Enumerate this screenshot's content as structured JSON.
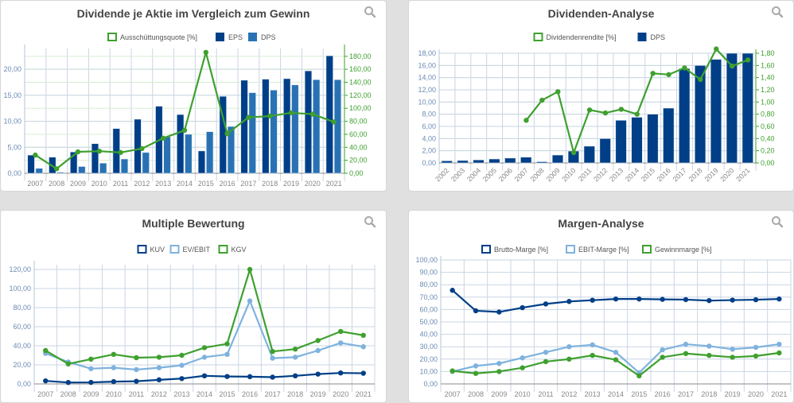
{
  "colors": {
    "dark_blue": "#003f87",
    "mid_blue": "#2872b4",
    "light_blue": "#7fb2de",
    "green": "#3ea02e",
    "grid_blue": "#c9d5e3",
    "grid_green": "#d7ecd2"
  },
  "icons": {
    "zoom": "magnifier-icon"
  },
  "chart_data": [
    {
      "id": "dividende-vs-gewinn",
      "type": "bar",
      "title": "Dividende je Aktie im Vergleich zum Gewinn",
      "categories": [
        "2007",
        "2008",
        "2009",
        "2010",
        "2011",
        "2012",
        "2013",
        "2014",
        "2015",
        "2016",
        "2017",
        "2018",
        "2019",
        "2020",
        "2021"
      ],
      "legend_position": "top-center",
      "grid": true,
      "y_left": {
        "range": [
          0,
          24
        ],
        "ticks": [
          "0,00",
          "5,00",
          "10,00",
          "15,00",
          "20,00"
        ],
        "tick_values": [
          0,
          5,
          10,
          15,
          20
        ]
      },
      "y_right": {
        "range": [
          0,
          192
        ],
        "ticks": [
          "0,00",
          "20,00",
          "40,00",
          "60,00",
          "80,00",
          "100,00",
          "120,00",
          "140,00",
          "160,00",
          "180,00"
        ],
        "tick_values": [
          0,
          20,
          40,
          60,
          80,
          100,
          120,
          140,
          160,
          180
        ]
      },
      "series": [
        {
          "name": "Ausschüttungsquote [%]",
          "kind": "line",
          "axis": "right",
          "color": "#3ea02e",
          "values": [
            28,
            7,
            33,
            34,
            32,
            38,
            54,
            66,
            186,
            61,
            86,
            88,
            93,
            91,
            79
          ]
        },
        {
          "name": "EPS",
          "kind": "bar",
          "axis": "left",
          "color": "#003f87",
          "values": [
            3.5,
            3.1,
            4.1,
            5.7,
            8.6,
            10.4,
            12.9,
            11.3,
            4.3,
            14.8,
            17.9,
            18.1,
            18.2,
            19.7,
            22.6
          ]
        },
        {
          "name": "DPS",
          "kind": "bar",
          "axis": "left",
          "color": "#2872b4",
          "values": [
            0.95,
            0.2,
            1.3,
            1.95,
            2.75,
            4.0,
            7.0,
            7.5,
            8.0,
            9.0,
            15.5,
            16.0,
            17.0,
            18.0,
            18.0
          ]
        }
      ]
    },
    {
      "id": "dividenden-analyse",
      "type": "bar",
      "title": "Dividenden-Analyse",
      "categories": [
        "2002",
        "2003",
        "2004",
        "2005",
        "2006",
        "2007",
        "2008",
        "2009",
        "2010",
        "2011",
        "2012",
        "2013",
        "2014",
        "2015",
        "2016",
        "2017",
        "2018",
        "2019",
        "2020",
        "2021"
      ],
      "legend_position": "top-center",
      "grid": true,
      "y_left": {
        "range": [
          0,
          18
        ],
        "ticks": [
          "0,00",
          "2,00",
          "4,00",
          "6,00",
          "8,00",
          "10,00",
          "12,00",
          "14,00",
          "16,00",
          "18,00"
        ],
        "tick_values": [
          0,
          2,
          4,
          6,
          8,
          10,
          12,
          14,
          16,
          18
        ]
      },
      "y_right": {
        "range": [
          0,
          1.8
        ],
        "ticks": [
          "0,00",
          "0,20",
          "0,40",
          "0,60",
          "0,80",
          "1,00",
          "1,20",
          "1,40",
          "1,60",
          "1,80"
        ],
        "tick_values": [
          0,
          0.2,
          0.4,
          0.6,
          0.8,
          1.0,
          1.2,
          1.4,
          1.6,
          1.8
        ]
      },
      "series": [
        {
          "name": "Dividendenrendite [%]",
          "kind": "line",
          "axis": "right",
          "color": "#3ea02e",
          "values": [
            null,
            null,
            null,
            null,
            null,
            0.7,
            1.03,
            1.17,
            0.17,
            0.87,
            0.82,
            0.88,
            0.8,
            1.47,
            1.45,
            1.56,
            1.37,
            1.87,
            1.59,
            1.69
          ]
        },
        {
          "name": "DPS",
          "kind": "bar",
          "axis": "left",
          "color": "#003f87",
          "values": [
            0.35,
            0.4,
            0.5,
            0.65,
            0.8,
            0.95,
            0.2,
            1.3,
            1.95,
            2.75,
            4.0,
            7.0,
            7.5,
            8.0,
            9.0,
            15.5,
            16.0,
            17.0,
            18.0,
            18.0
          ]
        }
      ]
    },
    {
      "id": "multiple-bewertung",
      "type": "line",
      "title": "Multiple Bewertung",
      "categories": [
        "2007",
        "2008",
        "2009",
        "2010",
        "2011",
        "2012",
        "2013",
        "2014",
        "2015",
        "2016",
        "2017",
        "2018",
        "2019",
        "2020",
        "2021"
      ],
      "legend_position": "top-center",
      "grid": true,
      "y_left": {
        "range": [
          0,
          125
        ],
        "ticks": [
          "0,00",
          "20,00",
          "40,00",
          "60,00",
          "80,00",
          "100,00",
          "120,00"
        ],
        "tick_values": [
          0,
          20,
          40,
          60,
          80,
          100,
          120
        ]
      },
      "series": [
        {
          "name": "KUV",
          "color": "#003f87",
          "values": [
            3.2,
            1.5,
            1.6,
            2.4,
            2.8,
            4.3,
            5.6,
            8.5,
            7.8,
            7.6,
            7.1,
            8.5,
            10.3,
            11.5,
            11.2
          ]
        },
        {
          "name": "EV/EBIT",
          "color": "#7fb2de",
          "values": [
            32,
            23,
            16,
            17,
            15,
            17,
            19.5,
            28,
            31,
            87,
            27,
            28,
            35,
            43,
            39
          ]
        },
        {
          "name": "KGV",
          "color": "#3ea02e",
          "values": [
            35,
            21,
            26,
            31,
            27.5,
            28,
            30,
            38,
            42,
            120,
            34,
            36.5,
            45.5,
            55,
            51
          ]
        }
      ]
    },
    {
      "id": "margen-analyse",
      "type": "line",
      "title": "Margen-Analyse",
      "categories": [
        "2007",
        "2008",
        "2009",
        "2010",
        "2011",
        "2012",
        "2013",
        "2014",
        "2015",
        "2016",
        "2017",
        "2018",
        "2019",
        "2020",
        "2021"
      ],
      "legend_position": "top-center",
      "grid": true,
      "y_left": {
        "range": [
          0,
          100
        ],
        "ticks": [
          "0,00",
          "10,00",
          "20,00",
          "30,00",
          "40,00",
          "50,00",
          "60,00",
          "70,00",
          "80,00",
          "90,00",
          "100,00"
        ],
        "tick_values": [
          0,
          10,
          20,
          30,
          40,
          50,
          60,
          70,
          80,
          90,
          100
        ]
      },
      "series": [
        {
          "name": "Brutto-Marge [%]",
          "color": "#003f87",
          "values": [
            75.5,
            59,
            58,
            61.5,
            64.5,
            66.5,
            67.5,
            68.5,
            68.5,
            68.2,
            68.0,
            67.2,
            67.6,
            67.9,
            68.5
          ]
        },
        {
          "name": "EBIT-Marge [%]",
          "color": "#7fb2de",
          "values": [
            10,
            14.5,
            16.5,
            21,
            25.5,
            30,
            31.5,
            25.5,
            9,
            27.5,
            32,
            30.5,
            28,
            29.5,
            32
          ]
        },
        {
          "name": "Gewinnmarge [%]",
          "color": "#3ea02e",
          "values": [
            10.5,
            8.5,
            10,
            13,
            18,
            20,
            23,
            19.5,
            6.5,
            21.5,
            24.5,
            23,
            21.5,
            22.5,
            25
          ]
        }
      ]
    }
  ]
}
